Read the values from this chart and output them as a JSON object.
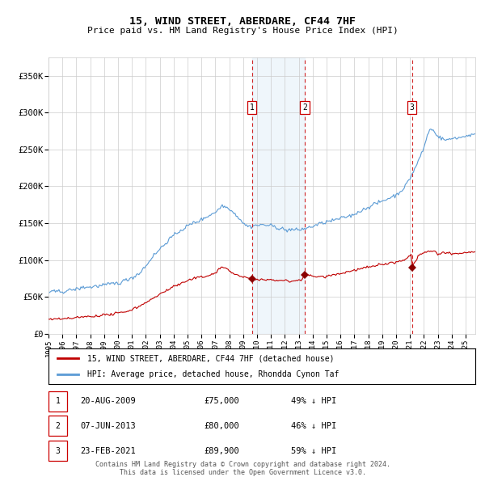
{
  "title": "15, WIND STREET, ABERDARE, CF44 7HF",
  "subtitle": "Price paid vs. HM Land Registry's House Price Index (HPI)",
  "legend_property": "15, WIND STREET, ABERDARE, CF44 7HF (detached house)",
  "legend_hpi": "HPI: Average price, detached house, Rhondda Cynon Taf",
  "footer_line1": "Contains HM Land Registry data © Crown copyright and database right 2024.",
  "footer_line2": "This data is licensed under the Open Government Licence v3.0.",
  "sales": [
    {
      "num": 1,
      "date": "20-AUG-2009",
      "price": 75000,
      "pct": "49%",
      "dir": "↓",
      "x_year": 2009.637
    },
    {
      "num": 2,
      "date": "07-JUN-2013",
      "price": 80000,
      "pct": "46%",
      "dir": "↓",
      "x_year": 2013.436
    },
    {
      "num": 3,
      "date": "23-FEB-2021",
      "price": 89900,
      "pct": "59%",
      "dir": "↓",
      "x_year": 2021.142
    }
  ],
  "hpi_line_color": "#5b9bd5",
  "property_color": "#c00000",
  "sale_marker_color": "#8b0000",
  "vline_color": "#cc0000",
  "shade_color": "#ddeeff",
  "ylim": [
    0,
    375000
  ],
  "xlim_start": 1995.0,
  "xlim_end": 2025.7,
  "yticks": [
    0,
    50000,
    100000,
    150000,
    200000,
    250000,
    300000,
    350000
  ],
  "ytick_labels": [
    "£0",
    "£50K",
    "£100K",
    "£150K",
    "£200K",
    "£250K",
    "£300K",
    "£350K"
  ],
  "xticks": [
    1995,
    1996,
    1997,
    1998,
    1999,
    2000,
    2001,
    2002,
    2003,
    2004,
    2005,
    2006,
    2007,
    2008,
    2009,
    2010,
    2011,
    2012,
    2013,
    2014,
    2015,
    2016,
    2017,
    2018,
    2019,
    2020,
    2021,
    2022,
    2023,
    2024,
    2025
  ],
  "grid_color": "#cccccc",
  "bg_color": "#ffffff"
}
